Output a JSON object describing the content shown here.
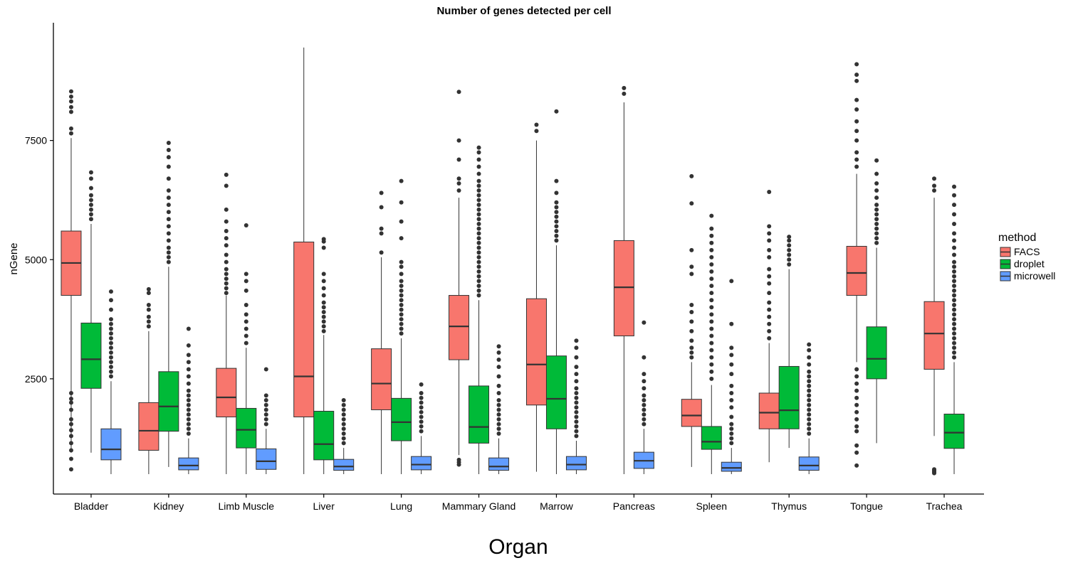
{
  "chart_data": {
    "type": "box",
    "title": "Number of genes detected per cell",
    "xlabel": "Organ",
    "ylabel": "nGene",
    "yticks": [
      2500,
      5000,
      7500
    ],
    "ylim": [
      250,
      9700
    ],
    "grid": false,
    "legend": {
      "title": "method",
      "placement": "right",
      "entries": [
        {
          "name": "FACS",
          "color": "#F8766D"
        },
        {
          "name": "droplet",
          "color": "#00BA38"
        },
        {
          "name": "microwell",
          "color": "#619CFF"
        }
      ]
    },
    "categories": [
      "Bladder",
      "Kidney",
      "Limb Muscle",
      "Liver",
      "Lung",
      "Mammary Gland",
      "Marrow",
      "Pancreas",
      "Spleen",
      "Thymus",
      "Tongue",
      "Trachea"
    ],
    "series": [
      {
        "name": "FACS",
        "color": "#F8766D",
        "boxes": [
          {
            "category": "Bladder",
            "whisker_low": 950,
            "q1": 4250,
            "median": 4930,
            "q3": 5600,
            "whisker_high": 7550,
            "outliers": [
              600,
              820,
              1000,
              1150,
              1300,
              1420,
              1550,
              1650,
              1850,
              2000,
              2080,
              2200,
              7650,
              7750,
              8100,
              8200,
              8320,
              8420,
              8530
            ]
          },
          {
            "category": "Kidney",
            "whisker_low": 500,
            "q1": 1000,
            "median": 1410,
            "q3": 2000,
            "whisker_high": 3500,
            "outliers": [
              3600,
              3700,
              3800,
              3950,
              4050,
              4300,
              4380
            ]
          },
          {
            "category": "Limb Muscle",
            "whisker_low": 500,
            "q1": 1700,
            "median": 2110,
            "q3": 2720,
            "whisker_high": 4250,
            "outliers": [
              4300,
              4400,
              4500,
              4600,
              4700,
              4800,
              4950,
              5100,
              5300,
              5450,
              5600,
              5800,
              6050,
              6550,
              6780
            ]
          },
          {
            "category": "Liver",
            "whisker_low": 500,
            "q1": 1700,
            "median": 2550,
            "q3": 5370,
            "whisker_high": 9450,
            "outliers": []
          },
          {
            "category": "Lung",
            "whisker_low": 500,
            "q1": 1850,
            "median": 2400,
            "q3": 3130,
            "whisker_high": 5050,
            "outliers": [
              5150,
              5550,
              5650,
              6100,
              6400
            ]
          },
          {
            "category": "Mammary Gland",
            "whisker_low": 900,
            "q1": 2900,
            "median": 3600,
            "q3": 4250,
            "whisker_high": 6300,
            "outliers": [
              700,
              750,
              800,
              6450,
              6600,
              6700,
              7100,
              7500,
              8520
            ]
          },
          {
            "category": "Marrow",
            "whisker_low": 550,
            "q1": 1950,
            "median": 2800,
            "q3": 4180,
            "whisker_high": 7500,
            "outliers": [
              7700,
              7830
            ]
          },
          {
            "category": "Pancreas",
            "whisker_low": 500,
            "q1": 3400,
            "median": 4420,
            "q3": 5400,
            "whisker_high": 8300,
            "outliers": [
              8480,
              8600
            ]
          },
          {
            "category": "Spleen",
            "whisker_low": 650,
            "q1": 1500,
            "median": 1730,
            "q3": 2070,
            "whisker_high": 2850,
            "outliers": [
              2950,
              3050,
              3150,
              3300,
              3500,
              3700,
              3900,
              4050,
              4700,
              4850,
              5200,
              6180,
              6750
            ]
          },
          {
            "category": "Thymus",
            "whisker_low": 750,
            "q1": 1450,
            "median": 1790,
            "q3": 2200,
            "whisker_high": 3250,
            "outliers": [
              3350,
              3500,
              3650,
              3800,
              3950,
              4100,
              4300,
              4500,
              4650,
              4800,
              5050,
              5200,
              5400,
              5550,
              5700,
              6420
            ]
          },
          {
            "category": "Tongue",
            "whisker_low": 2850,
            "q1": 4250,
            "median": 4720,
            "q3": 5280,
            "whisker_high": 6800,
            "outliers": [
              680,
              950,
              1100,
              1400,
              1500,
              1650,
              1800,
              1950,
              2100,
              2250,
              2400,
              2550,
              2700,
              6950,
              7100,
              7250,
              7500,
              7700,
              7900,
              8150,
              8350,
              8750,
              8880,
              9100
            ]
          },
          {
            "category": "Trachea",
            "whisker_low": 1300,
            "q1": 2700,
            "median": 3450,
            "q3": 4120,
            "whisker_high": 6300,
            "outliers": [
              520,
              540,
              560,
              580,
              600,
              6450,
              6550,
              6700
            ]
          }
        ]
      },
      {
        "name": "droplet",
        "color": "#00BA38",
        "boxes": [
          {
            "category": "Bladder",
            "whisker_low": 950,
            "q1": 2300,
            "median": 2910,
            "q3": 3670,
            "whisker_high": 5750,
            "outliers": [
              5850,
              5950,
              6050,
              6150,
              6250,
              6350,
              6500,
              6700,
              6830
            ]
          },
          {
            "category": "Kidney",
            "whisker_low": 650,
            "q1": 1400,
            "median": 1920,
            "q3": 2650,
            "whisker_high": 4850,
            "outliers": [
              4950,
              5050,
              5150,
              5250,
              5400,
              5550,
              5700,
              5850,
              6000,
              6150,
              6300,
              6450,
              6700,
              6950,
              7150,
              7300,
              7450
            ]
          },
          {
            "category": "Limb Muscle",
            "whisker_low": 500,
            "q1": 1050,
            "median": 1430,
            "q3": 1880,
            "whisker_high": 3150,
            "outliers": [
              3250,
              3400,
              3550,
              3700,
              3850,
              4050,
              4350,
              4550,
              4700,
              5720
            ]
          },
          {
            "category": "Liver",
            "whisker_low": 500,
            "q1": 800,
            "median": 1130,
            "q3": 1820,
            "whisker_high": 3420,
            "outliers": [
              3500,
              3600,
              3700,
              3800,
              3900,
              4000,
              4100,
              4250,
              4400,
              4550,
              4700,
              5250,
              5380,
              5430
            ]
          },
          {
            "category": "Lung",
            "whisker_low": 500,
            "q1": 1200,
            "median": 1590,
            "q3": 2090,
            "whisker_high": 3350,
            "outliers": [
              3450,
              3550,
              3650,
              3750,
              3850,
              3950,
              4050,
              4150,
              4250,
              4350,
              4450,
              4550,
              4700,
              4850,
              4950,
              5450,
              5800,
              6200,
              6650
            ]
          },
          {
            "category": "Mammary Gland",
            "whisker_low": 500,
            "q1": 1150,
            "median": 1490,
            "q3": 2350,
            "whisker_high": 4150,
            "outliers": [
              4250,
              4350,
              4450,
              4550,
              4650,
              4750,
              4850,
              4950,
              5050,
              5150,
              5250,
              5350,
              5450,
              5550,
              5650,
              5750,
              5850,
              5950,
              6050,
              6150,
              6250,
              6350,
              6450,
              6550,
              6650,
              6800,
              6950,
              7100,
              7250,
              7350
            ]
          },
          {
            "category": "Marrow",
            "whisker_low": 500,
            "q1": 1450,
            "median": 2080,
            "q3": 2980,
            "whisker_high": 5300,
            "outliers": [
              5400,
              5500,
              5600,
              5700,
              5800,
              5900,
              6000,
              6100,
              6200,
              6400,
              6650,
              8110
            ]
          },
          {
            "category": "Spleen",
            "whisker_low": 500,
            "q1": 1020,
            "median": 1180,
            "q3": 1500,
            "whisker_high": 2370,
            "outliers": [
              2500,
              2650,
              2800,
              2950,
              3100,
              3250,
              3400,
              3550,
              3700,
              3850,
              4000,
              4150,
              4300,
              4450,
              4600,
              4750,
              4900,
              5050,
              5200,
              5350,
              5500,
              5650,
              5920
            ]
          },
          {
            "category": "Thymus",
            "whisker_low": 1050,
            "q1": 1450,
            "median": 1840,
            "q3": 2760,
            "whisker_high": 4800,
            "outliers": [
              4900,
              5000,
              5100,
              5200,
              5300,
              5400,
              5480
            ]
          },
          {
            "category": "Tongue",
            "whisker_low": 1150,
            "q1": 2500,
            "median": 2920,
            "q3": 3590,
            "whisker_high": 5250,
            "outliers": [
              5350,
              5450,
              5550,
              5650,
              5750,
              5850,
              5950,
              6050,
              6150,
              6300,
              6450,
              6600,
              6800,
              7080
            ]
          },
          {
            "category": "Trachea",
            "whisker_low": 500,
            "q1": 1040,
            "median": 1370,
            "q3": 1760,
            "whisker_high": 2850,
            "outliers": [
              2950,
              3050,
              3150,
              3250,
              3350,
              3450,
              3550,
              3650,
              3750,
              3850,
              3950,
              4050,
              4150,
              4250,
              4350,
              4450,
              4550,
              4650,
              4750,
              4850,
              4950,
              5100,
              5250,
              5400,
              5550,
              5750,
              5950,
              6150,
              6350,
              6530
            ]
          }
        ]
      },
      {
        "name": "microwell",
        "color": "#619CFF",
        "boxes": [
          {
            "category": "Bladder",
            "whisker_low": 500,
            "q1": 800,
            "median": 1020,
            "q3": 1450,
            "whisker_high": 2450,
            "outliers": [
              2550,
              2650,
              2750,
              2850,
              2950,
              3050,
              3150,
              3250,
              3350,
              3450,
              3550,
              3650,
              3750,
              3950,
              4150,
              4330
            ]
          },
          {
            "category": "Kidney",
            "whisker_low": 500,
            "q1": 590,
            "median": 680,
            "q3": 840,
            "whisker_high": 1250,
            "outliers": [
              1350,
              1450,
              1550,
              1650,
              1750,
              1850,
              1950,
              2050,
              2150,
              2250,
              2400,
              2550,
              2700,
              2850,
              3000,
              3200,
              3550
            ]
          },
          {
            "category": "Limb Muscle",
            "whisker_low": 500,
            "q1": 600,
            "median": 770,
            "q3": 1030,
            "whisker_high": 1450,
            "outliers": [
              1550,
              1650,
              1750,
              1850,
              1950,
              2050,
              2150,
              2700
            ]
          },
          {
            "category": "Liver",
            "whisker_low": 500,
            "q1": 580,
            "median": 660,
            "q3": 810,
            "whisker_high": 1050,
            "outliers": [
              1150,
              1250,
              1350,
              1450,
              1550,
              1650,
              1750,
              1850,
              1950,
              2050
            ]
          },
          {
            "category": "Lung",
            "whisker_low": 500,
            "q1": 590,
            "median": 700,
            "q3": 870,
            "whisker_high": 1300,
            "outliers": [
              1400,
              1500,
              1600,
              1700,
              1800,
              1900,
              2000,
              2100,
              2200,
              2380
            ]
          },
          {
            "category": "Mammary Gland",
            "whisker_low": 500,
            "q1": 580,
            "median": 660,
            "q3": 840,
            "whisker_high": 1250,
            "outliers": [
              1350,
              1450,
              1550,
              1650,
              1750,
              1850,
              1950,
              2050,
              2200,
              2350,
              2550,
              2750,
              2900,
              3050,
              3180
            ]
          },
          {
            "category": "Marrow",
            "whisker_low": 500,
            "q1": 590,
            "median": 700,
            "q3": 870,
            "whisker_high": 1200,
            "outliers": [
              1300,
              1400,
              1500,
              1600,
              1700,
              1800,
              1900,
              2000,
              2100,
              2200,
              2300,
              2450,
              2600,
              2750,
              2950,
              3150,
              3300
            ]
          },
          {
            "category": "Pancreas",
            "whisker_low": 500,
            "q1": 620,
            "median": 780,
            "q3": 960,
            "whisker_high": 1450,
            "outliers": [
              1550,
              1650,
              1750,
              1850,
              1950,
              2050,
              2150,
              2300,
              2450,
              2600,
              2950,
              3680
            ]
          },
          {
            "category": "Spleen",
            "whisker_low": 500,
            "q1": 560,
            "median": 630,
            "q3": 750,
            "whisker_high": 1050,
            "outliers": [
              1150,
              1250,
              1350,
              1450,
              1550,
              1700,
              1900,
              2050,
              2200,
              2350,
              2600,
              2800,
              3000,
              3150,
              3650,
              4550
            ]
          },
          {
            "category": "Thymus",
            "whisker_low": 500,
            "q1": 580,
            "median": 680,
            "q3": 860,
            "whisker_high": 1250,
            "outliers": [
              1350,
              1450,
              1550,
              1650,
              1750,
              1850,
              1950,
              2050,
              2150,
              2250,
              2350,
              2450,
              2550,
              2650,
              2800,
              2950,
              3100,
              3220
            ]
          }
        ]
      }
    ]
  }
}
